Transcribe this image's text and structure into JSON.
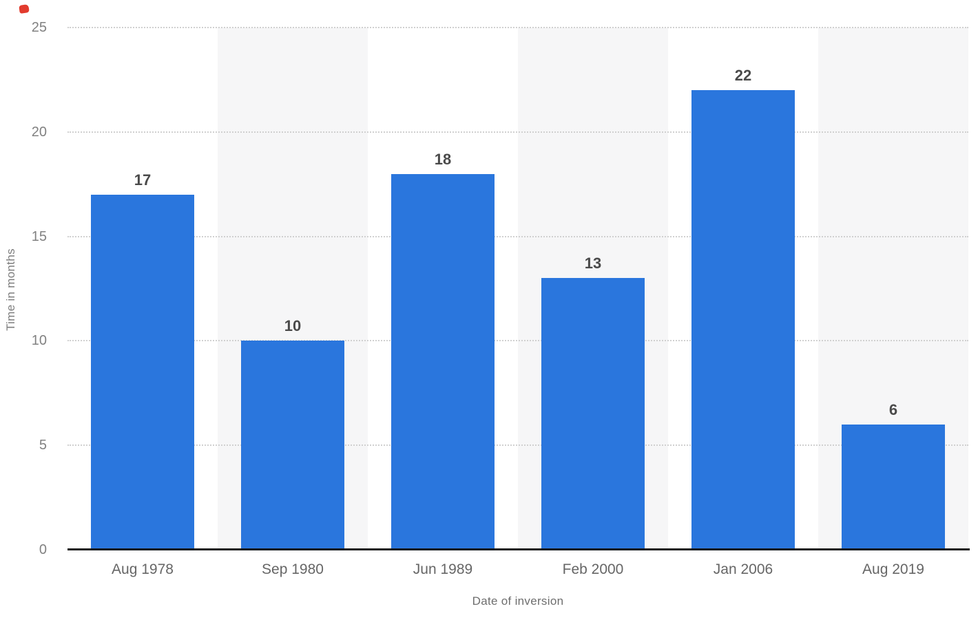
{
  "decorations": {
    "red_marker_color": "#e23b2e"
  },
  "chart_data": {
    "type": "bar",
    "title": "",
    "categories": [
      "Aug 1978",
      "Sep 1980",
      "Jun 1989",
      "Feb 2000",
      "Jan 2006",
      "Aug 2019"
    ],
    "values": [
      17,
      10,
      18,
      13,
      22,
      6
    ],
    "value_labels": [
      "17",
      "10",
      "18",
      "13",
      "22",
      "6"
    ],
    "xlabel": "Date of inversion",
    "ylabel": "Time in months",
    "ylim": [
      0,
      25
    ],
    "yticks": [
      0,
      5,
      10,
      15,
      20,
      25
    ],
    "grid": "horizontal-dotted",
    "legend": "none",
    "bar_color": "#2a76dd",
    "band_color": "#f6f6f7",
    "gridline_color": "#d0d0d0",
    "axis_line_color": "#161616",
    "tick_label_color": "#818181",
    "category_label_color": "#666666",
    "value_label_color": "#4a4a4a",
    "alternating_bands": true
  }
}
